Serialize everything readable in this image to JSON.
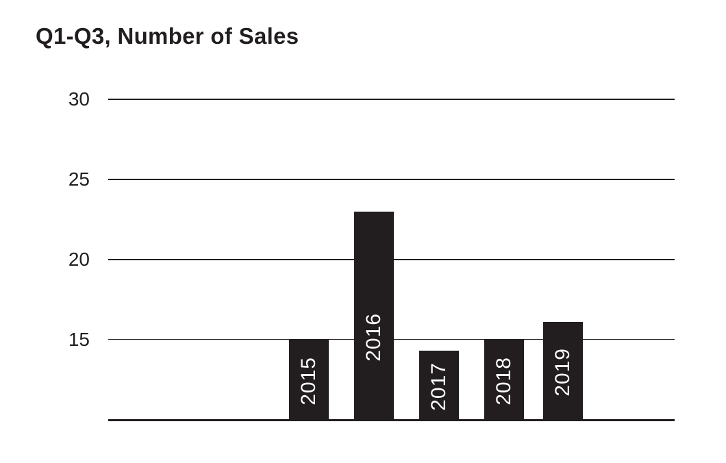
{
  "chart_data": {
    "type": "bar",
    "title": "Q1-Q3, Number of Sales",
    "categories": [
      "2015",
      "2016",
      "2017",
      "2018",
      "2019"
    ],
    "values": [
      15,
      23,
      14.3,
      15,
      16.1
    ],
    "xlabel": "",
    "ylabel": "",
    "yticks": [
      30,
      25,
      20,
      15
    ],
    "ylim": [
      10,
      30
    ],
    "grid": "horizontal",
    "legend": "none",
    "bar_label_style": "category year inside bar, rotated 90 degrees counterclockwise, white text",
    "colors": {
      "bar": "#221e1f",
      "gridline": "#221e1f",
      "axis_text": "#221e1f",
      "title_text": "#221e1f",
      "bar_label_text": "#ffffff",
      "background": "#ffffff"
    }
  }
}
